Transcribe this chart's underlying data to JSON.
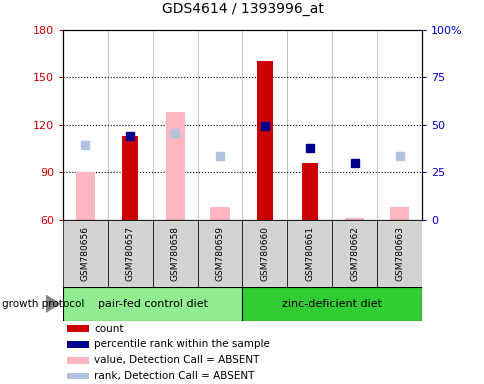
{
  "title": "GDS4614 / 1393996_at",
  "samples": [
    "GSM780656",
    "GSM780657",
    "GSM780658",
    "GSM780659",
    "GSM780660",
    "GSM780661",
    "GSM780662",
    "GSM780663"
  ],
  "ylim_left": [
    60,
    180
  ],
  "ylim_right": [
    0,
    100
  ],
  "yticks_left": [
    60,
    90,
    120,
    150,
    180
  ],
  "yticks_right": [
    0,
    25,
    50,
    75,
    100
  ],
  "ytick_labels_right": [
    "0",
    "25",
    "50",
    "75",
    "100%"
  ],
  "red_bars": [
    null,
    113,
    null,
    null,
    160,
    96,
    null,
    null
  ],
  "pink_bars": [
    90,
    null,
    128,
    68,
    null,
    null,
    61,
    68
  ],
  "blue_squares_left": [
    null,
    113,
    null,
    null,
    119,
    105,
    96,
    null
  ],
  "lightblue_squares_left": [
    107,
    null,
    115,
    100,
    null,
    null,
    null,
    100
  ],
  "group1_label": "pair-fed control diet",
  "group2_label": "zinc-deficient diet",
  "group1_indices": [
    0,
    1,
    2,
    3
  ],
  "group2_indices": [
    4,
    5,
    6,
    7
  ],
  "group_protocol_label": "growth protocol",
  "legend_items": [
    {
      "color": "#cc0000",
      "label": "count"
    },
    {
      "color": "#00008b",
      "label": "percentile rank within the sample"
    },
    {
      "color": "#ffb6c1",
      "label": "value, Detection Call = ABSENT"
    },
    {
      "color": "#b0c4de",
      "label": "rank, Detection Call = ABSENT"
    }
  ],
  "left_axis_color": "#cc0000",
  "right_axis_color": "#0000cc",
  "bg_plot": "#ffffff",
  "bg_sample_area": "#d3d3d3",
  "group1_color": "#90ee90",
  "group2_color": "#32cd32",
  "bar_width": 0.35,
  "hline_values": [
    90,
    120,
    150
  ],
  "hline_color": "black",
  "hline_style": ":"
}
